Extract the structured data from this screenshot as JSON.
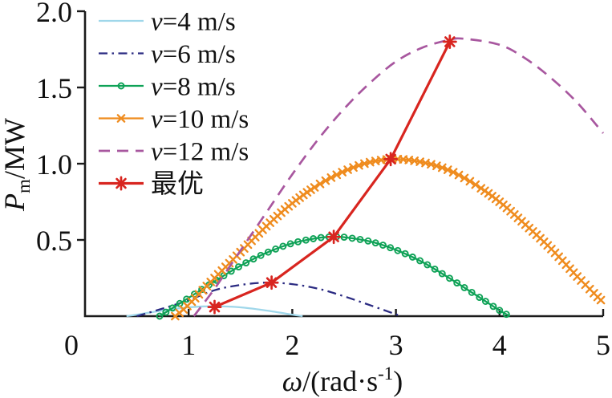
{
  "figure": {
    "bg": "#ffffff",
    "axis_color": "#1b1b1b",
    "text_color": "#111111"
  },
  "chart_data": {
    "type": "line",
    "title": "",
    "xlabel": {
      "sym": "ω",
      "pre": "/(rad·s",
      "sup": "-1",
      "post": ")"
    },
    "ylabel": {
      "sym": "P",
      "sub": "m",
      "rest": "/MW"
    },
    "xlim": [
      0,
      5
    ],
    "ylim": [
      0,
      2.0
    ],
    "xticks": [
      "0",
      "1",
      "2",
      "3",
      "4",
      "5"
    ],
    "yticks": [
      "0.5",
      "1.0",
      "1.5",
      "2.0"
    ],
    "grid": false,
    "legend_position": "top-left",
    "series": [
      {
        "key": "v4",
        "label_var": "v",
        "label_rest": "=4 m/s",
        "color": "#9fd7ea",
        "style": "solid",
        "marker": "none",
        "points": [
          [
            0.4,
            0
          ],
          [
            0.5,
            0.01
          ],
          [
            0.75,
            0.037
          ],
          [
            1.0,
            0.058
          ],
          [
            1.25,
            0.065
          ],
          [
            1.5,
            0.058
          ],
          [
            1.75,
            0.037
          ],
          [
            2.0,
            0.01
          ],
          [
            2.1,
            0
          ]
        ]
      },
      {
        "key": "v6",
        "label_var": "v",
        "label_rest": "=6 m/s",
        "color": "#2b2b82",
        "style": "dashdot",
        "marker": "none",
        "points": [
          [
            0.5,
            0
          ],
          [
            0.75,
            0.05
          ],
          [
            1.0,
            0.105
          ],
          [
            1.25,
            0.17
          ],
          [
            1.5,
            0.205
          ],
          [
            1.75,
            0.22
          ],
          [
            2.0,
            0.21
          ],
          [
            2.25,
            0.18
          ],
          [
            2.5,
            0.13
          ],
          [
            2.75,
            0.072
          ],
          [
            3.0,
            0.012
          ],
          [
            3.05,
            0
          ]
        ]
      },
      {
        "key": "v8",
        "label_var": "v",
        "label_rest": "=8 m/s",
        "color": "#0fa257",
        "style": "solid",
        "marker": "circle",
        "points": [
          [
            0.72,
            0
          ],
          [
            1.0,
            0.12
          ],
          [
            1.25,
            0.228
          ],
          [
            1.5,
            0.33
          ],
          [
            1.75,
            0.415
          ],
          [
            2.0,
            0.478
          ],
          [
            2.25,
            0.513
          ],
          [
            2.4,
            0.52
          ],
          [
            2.5,
            0.518
          ],
          [
            2.75,
            0.49
          ],
          [
            3.0,
            0.435
          ],
          [
            3.25,
            0.357
          ],
          [
            3.5,
            0.256
          ],
          [
            3.75,
            0.148
          ],
          [
            4.0,
            0.038
          ],
          [
            4.1,
            0
          ]
        ]
      },
      {
        "key": "v10",
        "label_var": "v",
        "label_rest": "=10 m/s",
        "color": "#ef8c1f",
        "style": "solid",
        "marker": "x",
        "points": [
          [
            0.87,
            0
          ],
          [
            1.0,
            0.075
          ],
          [
            1.25,
            0.25
          ],
          [
            1.5,
            0.42
          ],
          [
            1.75,
            0.59
          ],
          [
            2.0,
            0.74
          ],
          [
            2.25,
            0.86
          ],
          [
            2.5,
            0.95
          ],
          [
            2.75,
            1.01
          ],
          [
            3.0,
            1.03
          ],
          [
            3.25,
            1.01
          ],
          [
            3.5,
            0.96
          ],
          [
            3.75,
            0.87
          ],
          [
            4.0,
            0.75
          ],
          [
            4.25,
            0.6
          ],
          [
            4.5,
            0.44
          ],
          [
            4.75,
            0.26
          ],
          [
            5.0,
            0.09
          ]
        ]
      },
      {
        "key": "v12",
        "label_var": "v",
        "label_rest": "=12 m/s",
        "color": "#a8579f",
        "style": "dashed",
        "marker": "none",
        "points": [
          [
            1.05,
            0
          ],
          [
            1.25,
            0.18
          ],
          [
            1.5,
            0.43
          ],
          [
            1.75,
            0.68
          ],
          [
            2.0,
            0.93
          ],
          [
            2.25,
            1.16
          ],
          [
            2.5,
            1.36
          ],
          [
            2.75,
            1.53
          ],
          [
            3.0,
            1.67
          ],
          [
            3.25,
            1.76
          ],
          [
            3.5,
            1.81
          ],
          [
            3.65,
            1.82
          ],
          [
            4.0,
            1.78
          ],
          [
            4.25,
            1.69
          ],
          [
            4.5,
            1.56
          ],
          [
            4.75,
            1.4
          ],
          [
            5.0,
            1.2
          ]
        ]
      },
      {
        "key": "optimal",
        "label_var": "",
        "label_rest": "最优",
        "color": "#d8251f",
        "style": "solid",
        "line": "straight",
        "marker": "asterisk",
        "points": [
          [
            1.25,
            0.06
          ],
          [
            1.8,
            0.22
          ],
          [
            2.4,
            0.52
          ],
          [
            2.95,
            1.03
          ],
          [
            3.52,
            1.8
          ]
        ]
      }
    ]
  }
}
